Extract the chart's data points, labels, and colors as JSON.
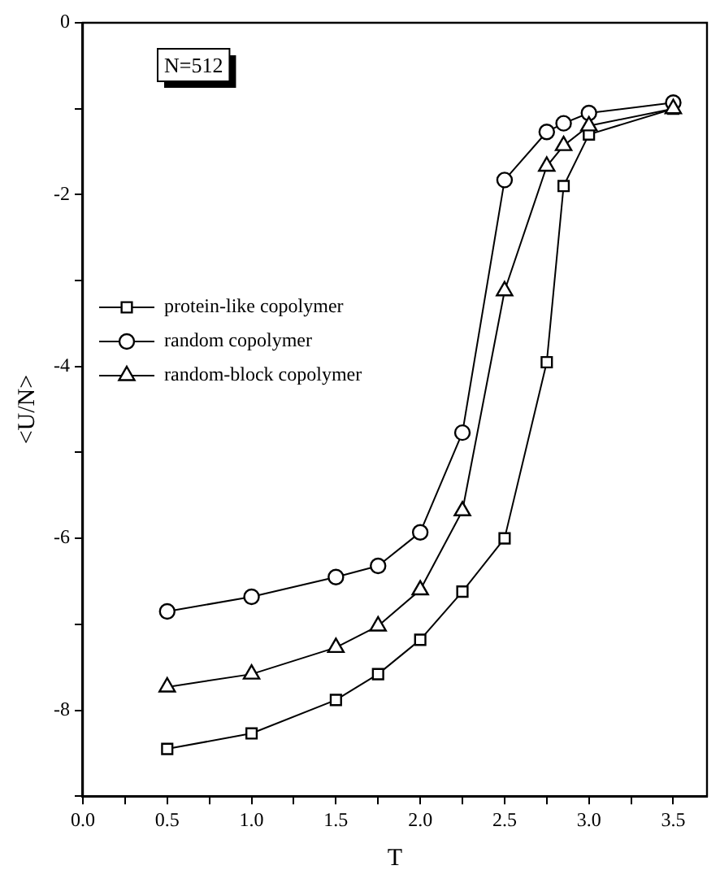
{
  "chart_data": {
    "type": "line",
    "xlabel": "T",
    "ylabel": "<U/N>",
    "annotations": [
      "N=512"
    ],
    "xlim": [
      0,
      3.7
    ],
    "ylim": [
      -9,
      0
    ],
    "xticks": [
      {
        "value": 0,
        "label": "0.0"
      },
      {
        "value": 0.25,
        "label": null
      },
      {
        "value": 0.5,
        "label": "0.5"
      },
      {
        "value": 0.75,
        "label": null
      },
      {
        "value": 1,
        "label": "1.0"
      },
      {
        "value": 1.25,
        "label": null
      },
      {
        "value": 1.5,
        "label": "1.5"
      },
      {
        "value": 1.75,
        "label": null
      },
      {
        "value": 2,
        "label": "2.0"
      },
      {
        "value": 2.25,
        "label": null
      },
      {
        "value": 2.5,
        "label": "2.5"
      },
      {
        "value": 2.75,
        "label": null
      },
      {
        "value": 3,
        "label": "3.0"
      },
      {
        "value": 3.25,
        "label": null
      },
      {
        "value": 3.5,
        "label": "3.5"
      }
    ],
    "yticks": [
      {
        "value": -9,
        "label": null
      },
      -8,
      {
        "value": -7,
        "label": null
      },
      -6,
      {
        "value": -5,
        "label": null
      },
      -4,
      {
        "value": -3,
        "label": null
      },
      -2,
      {
        "value": -1,
        "label": null
      },
      0
    ],
    "grid": false,
    "legend": "top left",
    "line_style": "solid",
    "series": [
      {
        "name": "protein-like copolymer",
        "color": "#000000",
        "marker": "square",
        "x": [
          0.5,
          1,
          1.5,
          1.75,
          2,
          2.25,
          2.5,
          2.75,
          2.85,
          3,
          3.5
        ],
        "values": [
          -8.45,
          -8.27,
          -7.88,
          -7.58,
          -7.18,
          -6.62,
          -6,
          -3.95,
          -1.9,
          -1.3,
          -1
        ]
      },
      {
        "name": "random copolymer",
        "color": "#000000",
        "marker": "circle",
        "x": [
          0.5,
          1,
          1.5,
          1.75,
          2,
          2.25,
          2.5,
          2.75,
          2.85,
          3,
          3.5
        ],
        "values": [
          -6.85,
          -6.68,
          -6.45,
          -6.32,
          -5.93,
          -4.77,
          -1.83,
          -1.27,
          -1.17,
          -1.05,
          -0.93
        ]
      },
      {
        "name": "random-block copolymer",
        "color": "#000000",
        "marker": "triangle",
        "x": [
          0.5,
          1,
          1.5,
          1.75,
          2,
          2.25,
          2.5,
          2.75,
          2.85,
          3,
          3.5
        ],
        "values": [
          -7.73,
          -7.58,
          -7.27,
          -7.02,
          -6.6,
          -5.68,
          -3.12,
          -1.67,
          -1.43,
          -1.2,
          -1
        ]
      }
    ]
  }
}
